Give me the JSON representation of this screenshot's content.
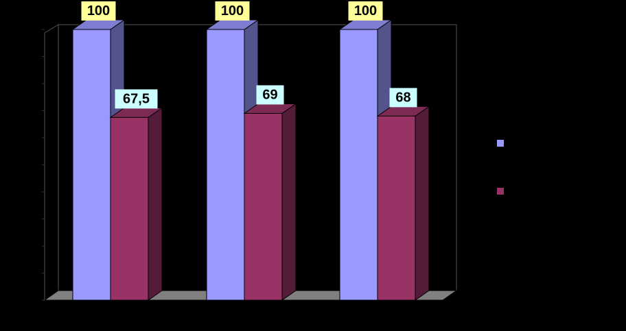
{
  "chart_data": {
    "type": "bar",
    "style": "3d-clustered-column",
    "categories": [
      "",
      "",
      ""
    ],
    "series": [
      {
        "values": [
          100,
          100,
          100
        ],
        "color": "#9999FF",
        "label_bg": "#FFFF99"
      },
      {
        "values": [
          67.5,
          69,
          68
        ],
        "value_labels": [
          "67,5",
          "69",
          "68"
        ],
        "color": "#993366",
        "label_bg": "#CCFFFF"
      }
    ],
    "title": "",
    "xlabel": "",
    "ylabel": "",
    "ylim": [
      0,
      100
    ],
    "grid": false,
    "legend": "right",
    "background": "#000000"
  }
}
